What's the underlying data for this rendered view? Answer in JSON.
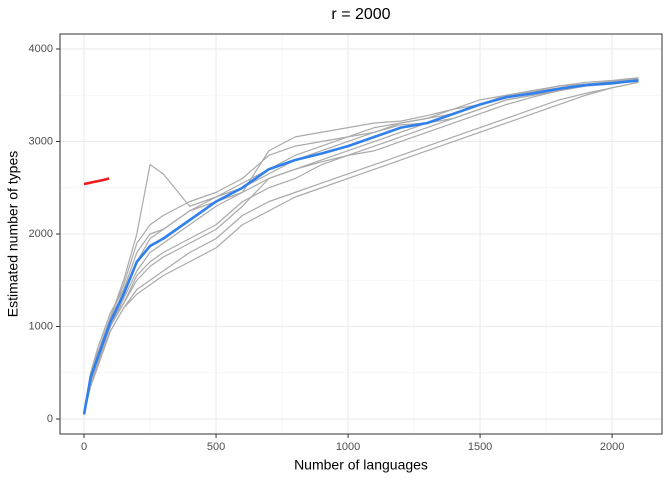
{
  "chart_data": {
    "type": "line",
    "title": "r = 2000",
    "x_label": "Number of languages",
    "y_label": "Estimated number of types",
    "xlim": [
      -91,
      2189
    ],
    "ylim": [
      -162,
      4162
    ],
    "xticks": [
      0,
      500,
      1000,
      1500,
      2000
    ],
    "yticks": [
      0,
      1000,
      2000,
      3000,
      4000
    ],
    "grid": true,
    "x": [
      0,
      25,
      50,
      100,
      150,
      200,
      250,
      300,
      400,
      500,
      600,
      700,
      800,
      900,
      1000,
      1100,
      1200,
      1300,
      1400,
      1500,
      1600,
      1700,
      1800,
      1900,
      2000,
      2100
    ],
    "series": [
      {
        "color": "#aaaaaa",
        "values": [
          50,
          500,
          700,
          1100,
          1500,
          2000,
          2750,
          2650,
          2300,
          2400,
          2500,
          2650,
          2800,
          2900,
          3000,
          3100,
          3200,
          3250,
          3350,
          3450,
          3500,
          3550,
          3600,
          3620,
          3640,
          3670
        ]
      },
      {
        "color": "#aaaaaa",
        "values": [
          50,
          400,
          600,
          1000,
          1300,
          1600,
          1800,
          1900,
          2100,
          2300,
          2450,
          2900,
          3050,
          3100,
          3150,
          3200,
          3220,
          3280,
          3350,
          3400,
          3470,
          3520,
          3570,
          3610,
          3650,
          3680
        ]
      },
      {
        "color": "#aaaaaa",
        "values": [
          50,
          450,
          650,
          1000,
          1250,
          1500,
          1650,
          1750,
          1900,
          2050,
          2300,
          2600,
          2700,
          2780,
          2850,
          2900,
          3000,
          3100,
          3200,
          3300,
          3400,
          3480,
          3550,
          3600,
          3630,
          3650
        ]
      },
      {
        "color": "#aaaaaa",
        "values": [
          50,
          350,
          550,
          950,
          1200,
          1400,
          1500,
          1600,
          1800,
          1950,
          2200,
          2350,
          2450,
          2550,
          2650,
          2750,
          2850,
          2950,
          3050,
          3150,
          3250,
          3350,
          3450,
          3520,
          3580,
          3640
        ]
      },
      {
        "color": "#aaaaaa",
        "values": [
          50,
          500,
          750,
          1150,
          1400,
          1800,
          2000,
          2050,
          2250,
          2400,
          2550,
          2700,
          2850,
          2950,
          3050,
          3100,
          3180,
          3200,
          3250,
          3350,
          3450,
          3500,
          3560,
          3600,
          3620,
          3660
        ]
      },
      {
        "color": "#aaaaaa",
        "values": [
          50,
          420,
          600,
          1050,
          1250,
          1550,
          1700,
          1800,
          1950,
          2100,
          2350,
          2500,
          2600,
          2750,
          2850,
          2950,
          3050,
          3150,
          3250,
          3350,
          3450,
          3500,
          3550,
          3600,
          3640,
          3670
        ]
      },
      {
        "color": "#aaaaaa",
        "values": [
          50,
          480,
          700,
          1100,
          1450,
          1900,
          2100,
          2200,
          2350,
          2450,
          2600,
          2850,
          2950,
          3000,
          3050,
          3150,
          3200,
          3250,
          3300,
          3400,
          3500,
          3550,
          3600,
          3640,
          3660,
          3690
        ]
      },
      {
        "color": "#aaaaaa",
        "values": [
          50,
          380,
          580,
          950,
          1200,
          1350,
          1450,
          1550,
          1700,
          1850,
          2100,
          2250,
          2400,
          2500,
          2600,
          2700,
          2800,
          2900,
          3000,
          3100,
          3200,
          3300,
          3400,
          3500,
          3580,
          3640
        ]
      },
      {
        "color": "#aaaaaa",
        "values": [
          50,
          460,
          680,
          1080,
          1380,
          1700,
          1950,
          2050,
          2250,
          2350,
          2450,
          2600,
          2700,
          2800,
          2900,
          3000,
          3100,
          3200,
          3300,
          3400,
          3500,
          3540,
          3580,
          3620,
          3650,
          3680
        ]
      },
      {
        "color": "#2f7fef",
        "values": [
          50,
          450,
          650,
          1050,
          1350,
          1700,
          1870,
          1950,
          2150,
          2350,
          2500,
          2700,
          2800,
          2870,
          2950,
          3050,
          3150,
          3200,
          3300,
          3400,
          3480,
          3520,
          3570,
          3610,
          3630,
          3660
        ]
      },
      {
        "color": "#ee1c1c",
        "x": [
          0,
          25,
          50,
          75,
          95
        ],
        "values": [
          2540,
          2555,
          2570,
          2585,
          2600
        ]
      }
    ]
  }
}
